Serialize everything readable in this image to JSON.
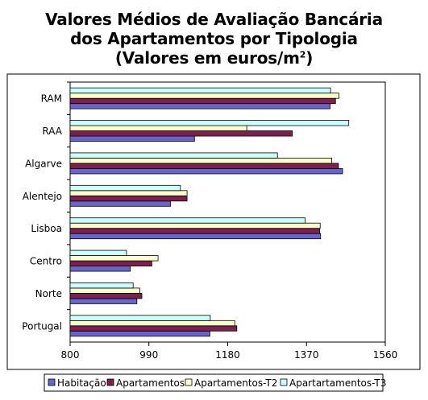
{
  "chart_data": {
    "type": "bar",
    "orientation": "horizontal",
    "title_lines": [
      "Valores Médios de Avaliação Bancária",
      "dos Apartamentos por Tipologia"
    ],
    "title_line3_prefix": "(Valores em euros/m",
    "title_line3_sup": "2",
    "title_line3_suffix": ")",
    "categories": [
      "Portugal",
      "Norte",
      "Centro",
      "Lisboa",
      "Alentejo",
      "Algarve",
      "RAA",
      "RAM"
    ],
    "series": [
      {
        "name": "Habitação",
        "color": "#6666cc",
        "values": [
          1137,
          961,
          945,
          1404,
          1042,
          1457,
          1100,
          1427
        ]
      },
      {
        "name": "Apartamentos",
        "color": "#7f1f4f",
        "values": [
          1202,
          973,
          997,
          1402,
          1082,
          1447,
          1336,
          1440
        ]
      },
      {
        "name": "Apartamentos-T2",
        "color": "#ffffcc",
        "values": [
          1197,
          968,
          1012,
          1403,
          1082,
          1431,
          1226,
          1448
        ]
      },
      {
        "name": "Apartartamentos-T3",
        "color": "#ccffff",
        "values": [
          1138,
          952,
          936,
          1367,
          1066,
          1300,
          1472,
          1428
        ]
      }
    ],
    "xlim": [
      800,
      1560
    ],
    "xticks": [
      "800",
      "990",
      "1180",
      "1370",
      "1560"
    ],
    "grid": false,
    "legend_position": "bottom"
  }
}
